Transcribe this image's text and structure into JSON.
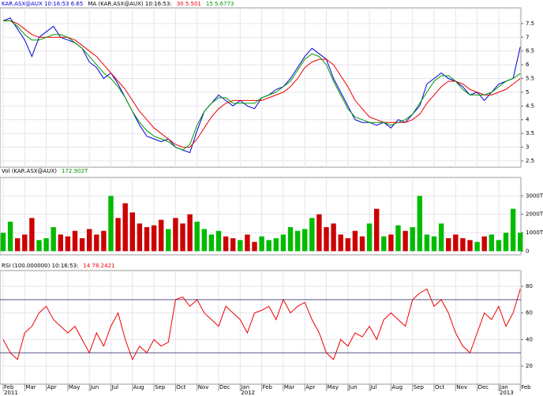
{
  "chart_data": [
    {
      "type": "line",
      "title": "KAR.ASX@AUX 10:16:53 6.65",
      "subtitle": "MA (KAR.ASX@AUX) 10:16:53:",
      "ylim": [
        2.27,
        8.07
      ],
      "yticks": [
        2.5,
        3,
        3.5,
        4,
        4.5,
        5,
        5.5,
        6,
        6.5,
        7,
        7.5
      ],
      "grid": true,
      "series": [
        {
          "name": "KAR.ASX@AUX 10:16:53 6.65",
          "color": "#0000dd",
          "values": [
            7.6,
            7.7,
            7.3,
            6.9,
            6.3,
            7.0,
            7.2,
            7.4,
            7.0,
            6.9,
            6.8,
            6.6,
            6.1,
            5.9,
            5.5,
            5.7,
            5.3,
            4.8,
            4.3,
            3.8,
            3.4,
            3.3,
            3.2,
            3.3,
            3.0,
            2.9,
            2.8,
            3.6,
            4.3,
            4.6,
            4.9,
            4.7,
            4.5,
            4.7,
            4.5,
            4.4,
            4.8,
            4.9,
            5.1,
            5.2,
            5.5,
            5.9,
            6.3,
            6.6,
            6.4,
            6.2,
            5.5,
            5.0,
            4.5,
            4.0,
            3.9,
            3.9,
            3.8,
            3.9,
            3.7,
            4.0,
            3.9,
            4.2,
            4.5,
            5.3,
            5.5,
            5.7,
            5.5,
            5.4,
            5.2,
            4.9,
            5.0,
            4.7,
            5.0,
            5.3,
            5.4,
            5.5,
            6.65
          ]
        },
        {
          "name": "30 5.501",
          "color": "#ee0000",
          "values": [
            7.6,
            7.6,
            7.5,
            7.3,
            7.1,
            7.0,
            7.0,
            7.0,
            7.0,
            7.0,
            6.9,
            6.7,
            6.5,
            6.3,
            6.0,
            5.7,
            5.4,
            5.1,
            4.7,
            4.3,
            4.0,
            3.7,
            3.5,
            3.3,
            3.1,
            3.0,
            3.0,
            3.3,
            3.7,
            4.1,
            4.4,
            4.6,
            4.7,
            4.7,
            4.7,
            4.7,
            4.7,
            4.8,
            4.9,
            5.0,
            5.2,
            5.5,
            5.9,
            6.1,
            6.2,
            6.2,
            6.0,
            5.6,
            5.2,
            4.7,
            4.4,
            4.1,
            4.0,
            3.9,
            3.9,
            3.9,
            3.9,
            4.0,
            4.2,
            4.6,
            4.9,
            5.2,
            5.4,
            5.4,
            5.3,
            5.1,
            5.0,
            4.9,
            4.9,
            5.0,
            5.1,
            5.3,
            5.5
          ]
        },
        {
          "name": "15 5.6773",
          "color": "#009900",
          "values": [
            7.6,
            7.6,
            7.4,
            7.1,
            6.9,
            6.9,
            7.0,
            7.1,
            7.1,
            7.0,
            6.8,
            6.6,
            6.3,
            6.0,
            5.7,
            5.5,
            5.2,
            4.8,
            4.3,
            3.9,
            3.6,
            3.4,
            3.3,
            3.2,
            3.0,
            2.9,
            3.1,
            3.8,
            4.3,
            4.6,
            4.8,
            4.8,
            4.6,
            4.6,
            4.6,
            4.6,
            4.8,
            4.9,
            5.0,
            5.2,
            5.4,
            5.8,
            6.2,
            6.4,
            6.3,
            6.0,
            5.4,
            4.9,
            4.4,
            4.1,
            4.0,
            3.9,
            3.9,
            3.9,
            3.8,
            3.9,
            4.0,
            4.2,
            4.6,
            5.0,
            5.4,
            5.6,
            5.6,
            5.4,
            5.1,
            4.9,
            4.9,
            4.9,
            5.0,
            5.2,
            5.4,
            5.5,
            5.68
          ]
        }
      ]
    },
    {
      "type": "bar",
      "title": "Vol (KAR.ASX@AUX)",
      "ylim": [
        -200,
        4000
      ],
      "yticks": [
        0,
        {
          "value": 1000,
          "label": "1000T"
        },
        {
          "value": 2000,
          "label": "2000T"
        },
        {
          "value": 3000,
          "label": "3000T"
        }
      ],
      "grid": true,
      "up_color": "#00bb00",
      "down_color": "#cc0000",
      "series": [
        {
          "name": "172.902T",
          "color": "#009900",
          "values": [
            1000,
            1600,
            700,
            900,
            1800,
            600,
            700,
            1300,
            900,
            800,
            1100,
            700,
            1200,
            900,
            1100,
            3000,
            1800,
            2600,
            2100,
            1500,
            1300,
            1400,
            1700,
            1200,
            1800,
            1500,
            2000,
            1600,
            1200,
            900,
            1100,
            800,
            700,
            600,
            900,
            500,
            800,
            600,
            700,
            900,
            1300,
            1100,
            1200,
            1800,
            2000,
            1300,
            1500,
            900,
            700,
            1100,
            800,
            1500,
            2300,
            800,
            900,
            1400,
            1100,
            1300,
            3000,
            900,
            800,
            1500,
            700,
            900,
            700,
            600,
            500,
            800,
            900,
            600,
            1000,
            2300,
            1000
          ]
        }
      ]
    },
    {
      "type": "line",
      "title": "RSI (100.000000) 10:16:53:",
      "ylim": [
        6.4,
        91.9
      ],
      "yticks": [
        20,
        40,
        60,
        80
      ],
      "bands": [
        30,
        70
      ],
      "grid": true,
      "categories": [
        "Feb",
        null,
        null,
        "Mar",
        null,
        null,
        "Apr",
        null,
        null,
        "May",
        null,
        null,
        "Jun",
        null,
        null,
        "Jul",
        null,
        null,
        "Aug",
        null,
        null,
        "Sep",
        null,
        null,
        "Oct",
        null,
        null,
        "Nov",
        null,
        null,
        "Dec",
        null,
        null,
        "Jan",
        null,
        null,
        "Feb",
        null,
        null,
        "Mar",
        null,
        null,
        "Apr",
        null,
        null,
        "May",
        null,
        null,
        "Jun",
        null,
        null,
        "Jul",
        null,
        null,
        "Aug",
        null,
        null,
        "Sep",
        null,
        null,
        "Oct",
        null,
        null,
        "Nov",
        null,
        null,
        "Dec",
        null,
        null,
        "Jan",
        null,
        null,
        "Feb"
      ],
      "years": [
        "2011",
        "2012",
        "2013"
      ],
      "series": [
        {
          "name": "14 78.2421",
          "color": "#ee0000",
          "values": [
            40,
            30,
            25,
            45,
            50,
            60,
            65,
            55,
            50,
            45,
            50,
            40,
            30,
            45,
            35,
            50,
            60,
            40,
            25,
            35,
            30,
            40,
            35,
            38,
            70,
            72,
            65,
            70,
            60,
            55,
            50,
            65,
            60,
            55,
            45,
            60,
            62,
            65,
            55,
            70,
            60,
            65,
            68,
            55,
            45,
            30,
            25,
            40,
            35,
            45,
            42,
            50,
            40,
            55,
            60,
            55,
            50,
            70,
            75,
            78,
            65,
            70,
            60,
            45,
            35,
            30,
            45,
            60,
            55,
            65,
            50,
            60,
            78
          ]
        }
      ]
    }
  ]
}
